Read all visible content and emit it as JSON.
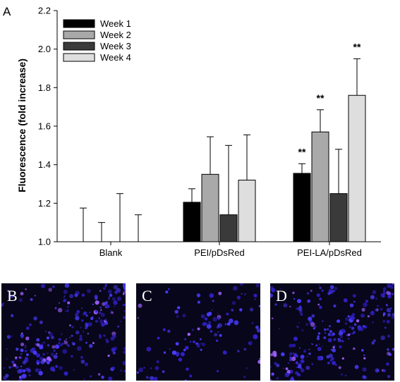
{
  "panel_label_a": "A",
  "chart_data": {
    "type": "bar",
    "ylabel": "Fluorescence (fold increase)",
    "xlabel": "",
    "ylim": [
      1.0,
      2.2
    ],
    "yticks": [
      "1.0",
      "1.2",
      "1.4",
      "1.6",
      "1.8",
      "2.0",
      "2.2"
    ],
    "categories": [
      "Blank",
      "PEI/pDsRed",
      "PEI-LA/pDsRed"
    ],
    "legend_position": "top-left",
    "series": [
      {
        "name": "Week 1",
        "color": "#000000",
        "values": [
          1.0,
          1.205,
          1.355
        ],
        "errors": [
          0.175,
          0.07,
          0.05
        ]
      },
      {
        "name": "Week 2",
        "color": "#a9a9a9",
        "values": [
          1.0,
          1.35,
          1.57
        ],
        "errors": [
          0.1,
          0.195,
          0.115
        ]
      },
      {
        "name": "Week 3",
        "color": "#3a3a3a",
        "values": [
          1.0,
          1.14,
          1.25
        ],
        "errors": [
          0.25,
          0.36,
          0.23
        ]
      },
      {
        "name": "Week 4",
        "color": "#dedede",
        "values": [
          1.0,
          1.32,
          1.76
        ],
        "errors": [
          0.14,
          0.235,
          0.19
        ]
      }
    ],
    "annotations": [
      {
        "category": "PEI-LA/pDsRed",
        "series": "Week 1",
        "text": "**"
      },
      {
        "category": "PEI-LA/pDsRed",
        "series": "Week 2",
        "text": "**"
      },
      {
        "category": "PEI-LA/pDsRed",
        "series": "Week 4",
        "text": "**"
      }
    ]
  },
  "panels": [
    {
      "label": "B"
    },
    {
      "label": "C"
    },
    {
      "label": "D"
    }
  ]
}
